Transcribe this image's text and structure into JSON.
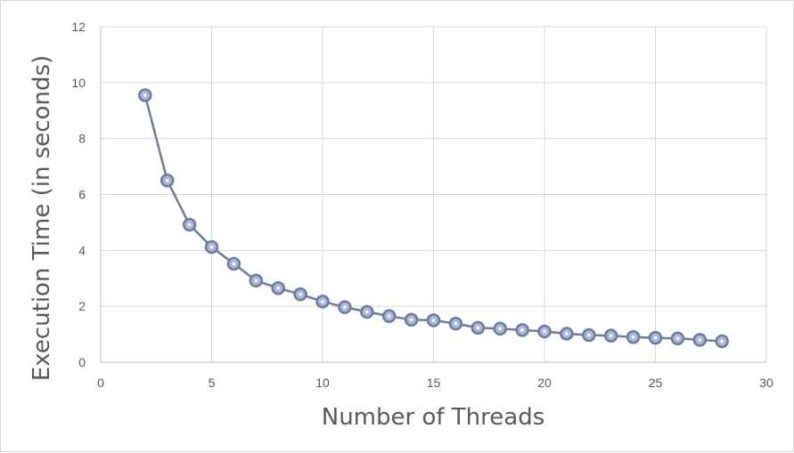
{
  "chart_data": {
    "type": "scatter",
    "title": "",
    "xlabel": "Number of Threads",
    "ylabel": "Execution Time (in seconds)",
    "xlim": [
      0,
      30
    ],
    "ylim": [
      0,
      12
    ],
    "x_ticks": [
      "0",
      "5",
      "10",
      "15",
      "20",
      "25",
      "30"
    ],
    "y_ticks": [
      "0",
      "2",
      "4",
      "6",
      "8",
      "10",
      "12"
    ],
    "grid": true,
    "series": [
      {
        "line": true,
        "marker": "circle",
        "x": [
          2,
          3,
          4,
          5,
          6,
          7,
          8,
          9,
          10,
          11,
          12,
          13,
          14,
          15,
          16,
          17,
          18,
          19,
          20,
          21,
          22,
          23,
          24,
          25,
          26,
          27,
          28
        ],
        "y": [
          9.55,
          6.5,
          4.92,
          4.12,
          3.52,
          2.92,
          2.65,
          2.43,
          2.17,
          1.97,
          1.8,
          1.65,
          1.52,
          1.5,
          1.38,
          1.23,
          1.2,
          1.15,
          1.1,
          1.02,
          0.97,
          0.95,
          0.9,
          0.87,
          0.85,
          0.8,
          0.75
        ]
      }
    ],
    "colors": {
      "line": "#6e7b99",
      "marker_edge": "#6e7b99",
      "marker_fill": "#a9b8de",
      "marker_center": "#ffffff"
    }
  }
}
